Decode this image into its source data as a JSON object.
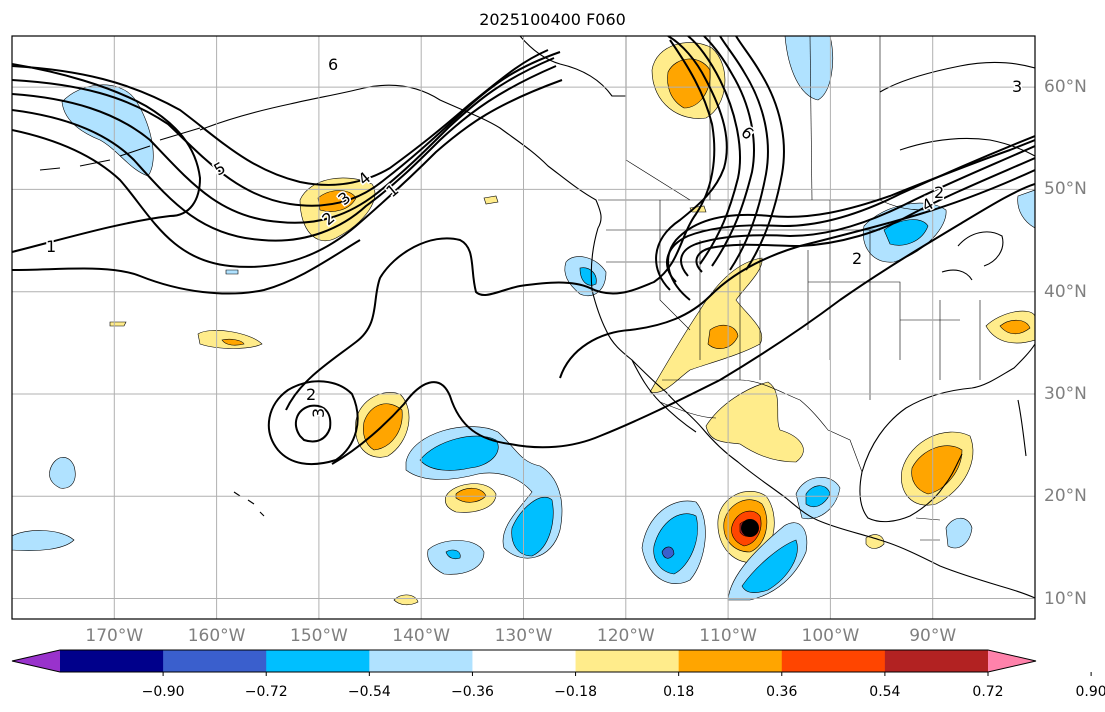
{
  "title": "2025100400 F060",
  "map": {
    "lon_labels": [
      "170°W",
      "160°W",
      "150°W",
      "140°W",
      "130°W",
      "120°W",
      "110°W",
      "100°W",
      "90°W"
    ],
    "lat_labels": [
      "60°N",
      "50°N",
      "40°N",
      "30°N",
      "20°N",
      "10°N"
    ],
    "extent": {
      "lon": [
        -180,
        -80
      ],
      "lat": [
        8,
        65
      ]
    }
  },
  "contour_labels": [
    "6",
    "5",
    "4",
    "3",
    "2",
    "1",
    "2",
    "3",
    "1",
    "6",
    "4",
    "2",
    "2",
    "3"
  ],
  "colorbar": {
    "labels": [
      "−0.90",
      "−0.72",
      "−0.54",
      "−0.36",
      "−0.18",
      "0.18",
      "0.36",
      "0.54",
      "0.72",
      "0.90"
    ],
    "colors": [
      "#9932cc",
      "#00008b",
      "#3a5fcd",
      "#00bfff",
      "#b0e2ff",
      "#ffffff",
      "#ffec8b",
      "#ffa500",
      "#ff4500",
      "#b22222",
      "#ff82ab"
    ],
    "extend": "both"
  },
  "marker": {
    "symbol": "storm-center",
    "color": "#000000"
  }
}
